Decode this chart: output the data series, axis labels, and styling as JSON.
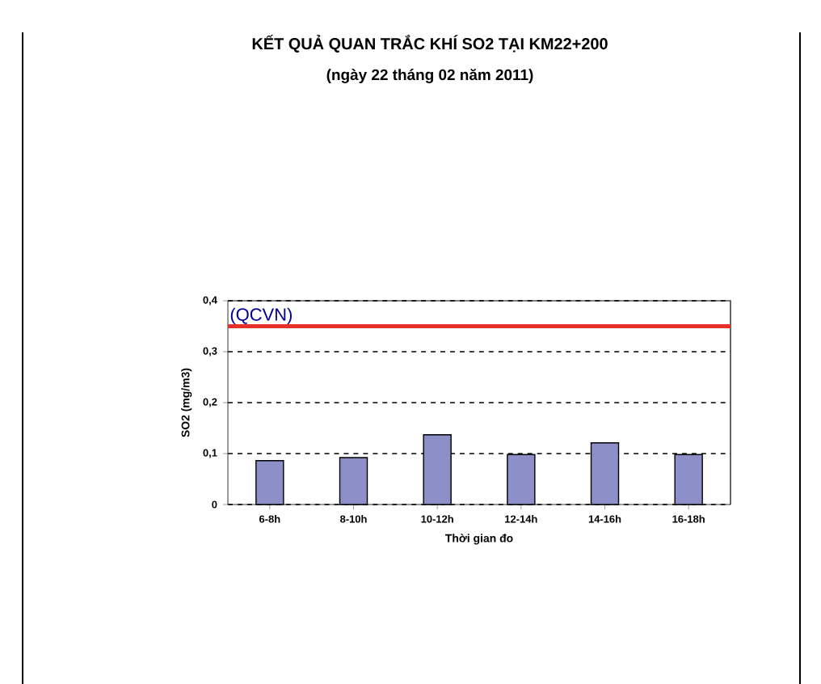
{
  "chart_data": {
    "type": "bar",
    "title": "KẾT QUẢ QUAN TRẮC KHÍ SO2 TẠI KM22+200",
    "subtitle": "(ngày 22 tháng 02 năm 2011)",
    "xlabel": "Thời gian đo",
    "ylabel": "SO2 (mg/m3)",
    "categories": [
      "6-8h",
      "8-10h",
      "10-12h",
      "12-14h",
      "14-16h",
      "16-18h"
    ],
    "values": [
      0.086,
      0.092,
      0.137,
      0.098,
      0.121,
      0.098
    ],
    "color": "#8c8fc8",
    "ylim": [
      0,
      0.4
    ],
    "yticks": [
      0,
      {
        "value": 0.1,
        "label": "0,1"
      },
      {
        "value": 0.2,
        "label": "0,2"
      },
      {
        "value": 0.3,
        "label": "0,3"
      },
      {
        "value": 0.4,
        "label": "0,4"
      }
    ],
    "grid": "y",
    "ref_lines": [
      {
        "axis": "y",
        "value": 0.35,
        "label": "(QCVN)",
        "color": "#e8302a"
      }
    ]
  }
}
